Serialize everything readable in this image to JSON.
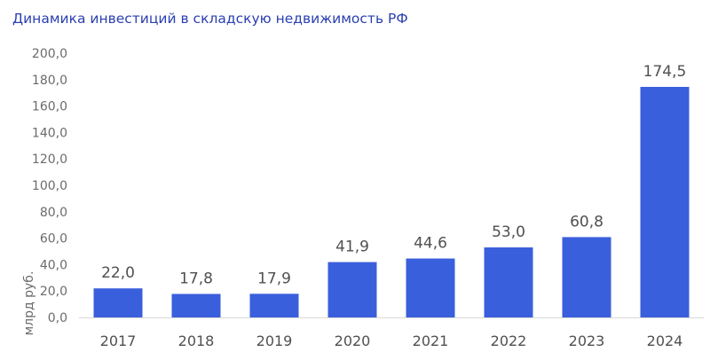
{
  "title": "Динамика инвестиций в складскую недвижимость РФ",
  "chart_data": {
    "type": "bar",
    "title": "Динамика инвестиций в складскую недвижимость РФ",
    "categories": [
      "2017",
      "2018",
      "2019",
      "2020",
      "2021",
      "2022",
      "2023",
      "2024"
    ],
    "values": [
      22.0,
      17.8,
      17.9,
      41.9,
      44.6,
      53.0,
      60.8,
      174.5
    ],
    "value_labels": [
      "22,0",
      "17,8",
      "17,9",
      "41,9",
      "44,6",
      "53,0",
      "60,8",
      "174,5"
    ],
    "y_ticks": [
      "0,0",
      "20,0",
      "40,0",
      "60,0",
      "80,0",
      "100,0",
      "120,0",
      "140,0",
      "160,0",
      "180,0",
      "200,0"
    ],
    "ylabel": "млрд руб.",
    "xlabel": "",
    "ylim": [
      0,
      200
    ],
    "grid": false,
    "legend": "none",
    "bar_color": "#3a5fdc",
    "title_color": "#2a3fb0"
  }
}
